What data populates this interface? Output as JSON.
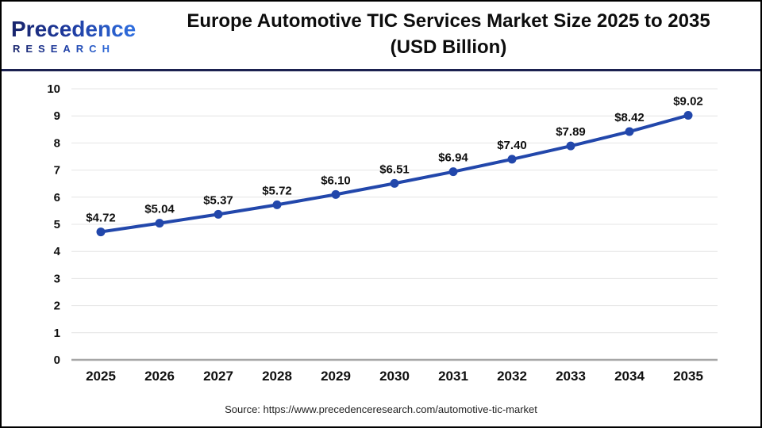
{
  "header": {
    "logo_line1": "Precedence",
    "logo_line2": "RESEARCH",
    "title_line1": "Europe Automotive TIC Services Market Size 2025 to 2035",
    "title_line2": "(USD Billion)"
  },
  "chart_data": {
    "type": "line",
    "title": "Europe Automotive TIC Services Market Size 2025 to 2035 (USD Billion)",
    "categories": [
      "2025",
      "2026",
      "2027",
      "2028",
      "2029",
      "2030",
      "2031",
      "2032",
      "2033",
      "2034",
      "2035"
    ],
    "values": [
      4.72,
      5.04,
      5.37,
      5.72,
      6.1,
      6.51,
      6.94,
      7.4,
      7.89,
      8.42,
      9.02
    ],
    "point_labels": [
      "$4.72",
      "$5.04",
      "$5.37",
      "$5.72",
      "$6.10",
      "$6.51",
      "$6.94",
      "$7.40",
      "$7.89",
      "$8.42",
      "$9.02"
    ],
    "unit": "USD Billion",
    "xlabel": "",
    "ylabel": "",
    "ylim": [
      0,
      10
    ],
    "yticks": [
      0,
      1,
      2,
      3,
      4,
      5,
      6,
      7,
      8,
      9,
      10
    ],
    "grid": true,
    "legend": "none",
    "line_color": "#2247ab",
    "marker_color": "#2247ab"
  },
  "footer": {
    "source": "Source: https://www.precedenceresearch.com/automotive-tic-market"
  },
  "colors": {
    "header_divider": "#1b2150",
    "grid_line": "#e4e4e4",
    "axis_line": "#a6a6a6",
    "text": "#0f0f0f",
    "logo_dark": "#18246b",
    "logo_light": "#2f6fe0"
  }
}
